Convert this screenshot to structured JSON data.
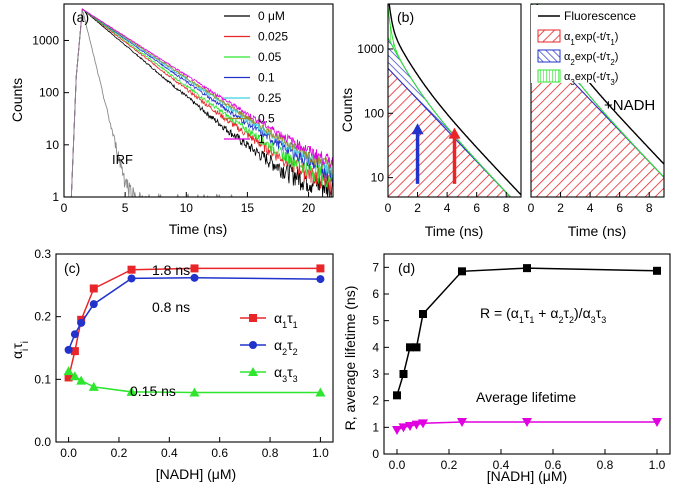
{
  "colors": {
    "black": "#000000",
    "red": "#e8262a",
    "green": "#2ee62e",
    "blue": "#2233cc",
    "navy": "#1a1a9e",
    "cyan": "#3fd0e0",
    "olive": "#9a8c2a",
    "magenta": "#e000e0",
    "gray": "#8a8a8a",
    "darkred": "#c00000"
  },
  "chart_data": [
    {
      "panel": "(a)",
      "type": "line",
      "xlabel": "Time (ns)",
      "ylabel": "Counts",
      "xlim": [
        0,
        22
      ],
      "ylim": [
        1,
        5000
      ],
      "yscale": "log",
      "xticks": [
        "0",
        "5",
        "10",
        "15",
        "20"
      ],
      "yticks": [
        "1",
        "10",
        "100",
        "1000"
      ],
      "legend": "top-right",
      "series": [
        {
          "name": "0 μM",
          "color": "#000000",
          "tau_ns": 2.2
        },
        {
          "name": "0.025",
          "color": "#e8262a",
          "tau_ns": 2.4
        },
        {
          "name": "0.05",
          "color": "#2ee62e",
          "tau_ns": 2.5
        },
        {
          "name": "0.1",
          "color": "#2233cc",
          "tau_ns": 2.65
        },
        {
          "name": "0.25",
          "color": "#3fd0e0",
          "tau_ns": 2.75
        },
        {
          "name": "0.5",
          "color": "#9a8c2a",
          "tau_ns": 2.8
        },
        {
          "name": "1",
          "color": "#e000e0",
          "tau_ns": 2.9
        },
        {
          "name": "IRF",
          "color": "#8a8a8a",
          "tau_ns": 0.45
        }
      ],
      "peak_time_ns": 1.5,
      "peak_counts": 4000,
      "annotation": "IRF"
    },
    {
      "panel": "(b)",
      "type": "area",
      "xlabel": "Time (ns)",
      "ylabel": "Counts",
      "ylim": [
        5,
        5000
      ],
      "yscale": "log",
      "xticks": [
        "0",
        "2",
        "4",
        "6",
        "8"
      ],
      "yticks": [
        "10",
        "100",
        "1000"
      ],
      "legend": "top-right",
      "legend_entries": [
        "Fluorescence",
        "α1exp(-t/τ1)",
        "α2exp(-t/τ2)",
        "α3exp(-t/τ3)"
      ],
      "subplots": [
        {
          "label": "",
          "xlim": [
            0,
            9
          ],
          "amplitudes": [
            500,
            1000,
            3000
          ],
          "taus_ns": [
            1.8,
            0.8,
            0.15
          ]
        },
        {
          "label": "+NADH",
          "xlim": [
            0,
            9
          ],
          "amplitudes": [
            1500,
            3000,
            1800
          ],
          "taus_ns": [
            1.8,
            0.8,
            0.15
          ]
        }
      ],
      "arrows": [
        {
          "color": "#2233cc",
          "x_ns": 2.0,
          "from_counts": 8,
          "to_counts": 70
        },
        {
          "color": "#e8262a",
          "x_ns": 4.5,
          "from_counts": 8,
          "to_counts": 60
        }
      ]
    },
    {
      "panel": "(c)",
      "type": "line",
      "xlabel": "[NADH] (μM)",
      "ylabel": "αiτi",
      "xlim": [
        -0.05,
        1.05
      ],
      "ylim": [
        0,
        0.3
      ],
      "xticks": [
        "0.0",
        "0.2",
        "0.4",
        "0.6",
        "0.8",
        "1.0"
      ],
      "yticks": [
        "0.0",
        "0.1",
        "0.2",
        "0.3"
      ],
      "legend": "center-right",
      "x": [
        0,
        0.025,
        0.05,
        0.1,
        0.25,
        0.5,
        1.0
      ],
      "series": [
        {
          "name": "α1τ1",
          "color": "#e8262a",
          "marker": "square",
          "values": [
            0.103,
            0.145,
            0.195,
            0.245,
            0.275,
            0.277,
            0.277
          ],
          "annotation": "1.8 ns"
        },
        {
          "name": "α2τ2",
          "color": "#2233cc",
          "marker": "circle",
          "values": [
            0.147,
            0.172,
            0.19,
            0.22,
            0.261,
            0.262,
            0.26
          ],
          "annotation": "0.8 ns"
        },
        {
          "name": "α3τ3",
          "color": "#2ee62e",
          "marker": "triangle",
          "values": [
            0.113,
            0.105,
            0.098,
            0.088,
            0.08,
            0.079,
            0.079
          ],
          "annotation": "0.15 ns"
        }
      ]
    },
    {
      "panel": "(d)",
      "type": "line",
      "xlabel": "[NADH] (μM)",
      "ylabel": "R,  average lifetime (ns)",
      "xlim": [
        -0.05,
        1.05
      ],
      "ylim": [
        0,
        7.5
      ],
      "xticks": [
        "0.0",
        "0.2",
        "0.4",
        "0.6",
        "0.8",
        "1.0"
      ],
      "yticks": [
        "0",
        "1",
        "2",
        "3",
        "4",
        "5",
        "6",
        "7"
      ],
      "x": [
        0,
        0.025,
        0.05,
        0.075,
        0.1,
        0.25,
        0.5,
        1.0
      ],
      "series": [
        {
          "name": "R = (α1τ1 + α2τ2)/α3τ3",
          "color": "#000000",
          "marker": "square",
          "values": [
            2.2,
            3.0,
            4.0,
            4.0,
            5.25,
            6.85,
            6.97,
            6.87
          ]
        },
        {
          "name": "Average lifetime",
          "color": "#e000e0",
          "marker": "triangle-down",
          "values": [
            0.9,
            1.0,
            1.05,
            1.1,
            1.15,
            1.2,
            1.2,
            1.2
          ]
        }
      ]
    }
  ]
}
